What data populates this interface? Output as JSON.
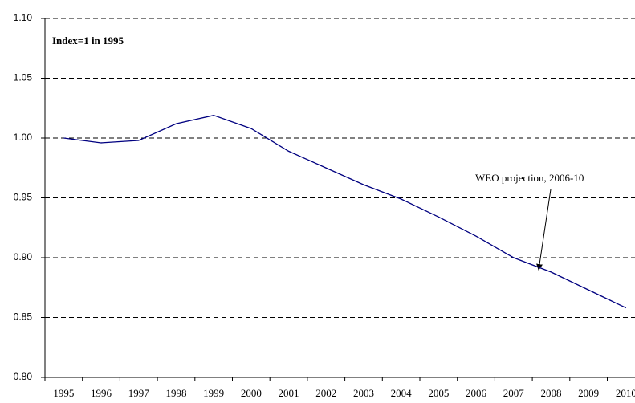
{
  "chart_data": {
    "type": "line",
    "annotations": [
      "Index=1 in 1995",
      "WEO projection, 2006-10"
    ],
    "categories": [
      "1995",
      "1996",
      "1997",
      "1998",
      "1999",
      "2000",
      "2001",
      "2002",
      "2003",
      "2004",
      "2005",
      "2006",
      "2007",
      "2008",
      "2009",
      "2010"
    ],
    "series": [
      {
        "color": "#000080",
        "values": [
          1.0,
          0.996,
          0.998,
          1.012,
          1.019,
          1.008,
          0.989,
          0.975,
          0.961,
          0.949,
          0.934,
          0.918,
          0.9,
          0.888,
          0.873,
          0.858
        ]
      }
    ],
    "ylim": [
      0.8,
      1.1
    ],
    "yticks": [
      {
        "value": 0.8,
        "label": "0.80"
      },
      0.85,
      {
        "value": 0.9,
        "label": "0.90"
      },
      0.95,
      {
        "value": 1.0,
        "label": "1.00"
      },
      1.05,
      {
        "value": 1.1,
        "label": "1.10"
      }
    ],
    "grid": true
  }
}
